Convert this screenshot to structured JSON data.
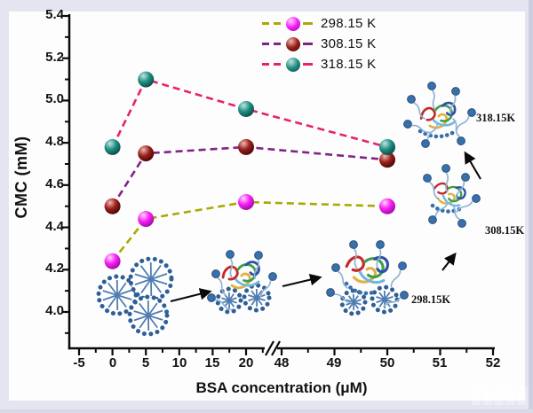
{
  "colors": {
    "background": "#E4E5F1",
    "panel": "#FDFDFE",
    "axis": "#0A0A0A"
  },
  "chart_data": {
    "type": "line",
    "title": "",
    "xlabel": "BSA concentration (μM)",
    "ylabel": "CMC (mM)",
    "x_ticks": [
      "-5",
      "0",
      "5",
      "10",
      "15",
      "20",
      "48",
      "49",
      "50",
      "51",
      "52"
    ],
    "y_ticks": [
      "4.0",
      "4.2",
      "4.4",
      "4.6",
      "4.8",
      "5.0",
      "5.2",
      "5.4"
    ],
    "ylim": [
      3.85,
      5.4
    ],
    "axis_break": {
      "between": [
        20,
        48
      ],
      "symbol": "//"
    },
    "grid": false,
    "legend_position": "top-center",
    "x": [
      0,
      5,
      20,
      50
    ],
    "series": [
      {
        "name": "298.15 K",
        "values": [
          4.24,
          4.44,
          4.52,
          4.5
        ],
        "line_color": "#A8AA00",
        "marker_gradient": [
          "#FFD9FF",
          "#FA1EF5",
          "#90089A"
        ]
      },
      {
        "name": "308.15 K",
        "values": [
          4.5,
          4.75,
          4.78,
          4.72
        ],
        "line_color": "#7E2585",
        "marker_gradient": [
          "#EFB9B3",
          "#9B1F1B",
          "#3E0404"
        ]
      },
      {
        "name": "318.15 K",
        "values": [
          4.78,
          5.1,
          4.96,
          4.78
        ],
        "line_color": "#E62368",
        "marker_gradient": [
          "#C2E6E1",
          "#218F85",
          "#06413C"
        ]
      }
    ]
  },
  "annotations": {
    "stage_labels": [
      {
        "text": "298.15K"
      },
      {
        "text": "308.15K"
      },
      {
        "text": "318.15K"
      }
    ]
  }
}
